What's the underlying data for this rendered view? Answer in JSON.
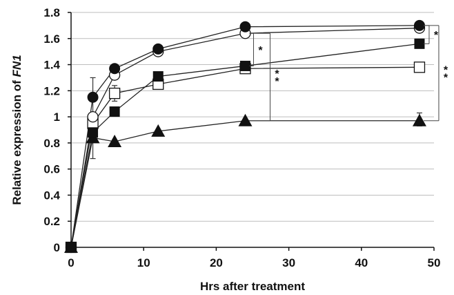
{
  "chart_data": {
    "type": "line",
    "title": "",
    "xlabel": "Hrs after treatment",
    "ylabel": "Relative expression of",
    "ylabel_gene": "FN1",
    "xlim": [
      0,
      50
    ],
    "ylim": [
      0,
      1.8
    ],
    "xticks": [
      "0",
      "10",
      "20",
      "30",
      "40",
      "50"
    ],
    "yticks": [
      "0",
      "0.2",
      "0.4",
      "0.6",
      "0.8",
      "1",
      "1.2",
      "1.4",
      "1.6",
      "1.8"
    ],
    "grid": "horizontal",
    "legend": "none",
    "x": [
      0,
      3,
      6,
      12,
      24,
      48
    ],
    "series": [
      {
        "marker": "filled-circle",
        "values": [
          0,
          1.15,
          1.37,
          1.52,
          1.69,
          1.7
        ]
      },
      {
        "marker": "open-circle",
        "values": [
          0,
          1.0,
          1.32,
          1.5,
          1.64,
          1.68
        ]
      },
      {
        "marker": "filled-square",
        "values": [
          0,
          0.88,
          1.04,
          1.31,
          1.39,
          1.56
        ]
      },
      {
        "marker": "open-square",
        "values": [
          0,
          0.95,
          1.18,
          1.25,
          1.37,
          1.38
        ]
      },
      {
        "marker": "filled-triangle",
        "values": [
          0,
          0.84,
          0.81,
          0.89,
          0.97,
          0.97
        ]
      }
    ],
    "error_bars": [
      {
        "series": 3,
        "x": 3,
        "low": 0.68,
        "high": 1.3
      },
      {
        "series": 3,
        "x": 6,
        "low": 1.12,
        "high": 1.24
      },
      {
        "series": 4,
        "x": 48,
        "low": 0.93,
        "high": 1.03
      }
    ],
    "significance": [
      {
        "label": "*",
        "x": 24,
        "from": 1.64,
        "to": 1.39
      },
      {
        "label": "**",
        "x": 24,
        "from": 1.64,
        "to": 0.97
      },
      {
        "label": "*",
        "x": 48,
        "from": 1.7,
        "to": 1.56
      },
      {
        "label": "**",
        "x": 48,
        "from": 1.7,
        "to": 0.97
      }
    ]
  }
}
